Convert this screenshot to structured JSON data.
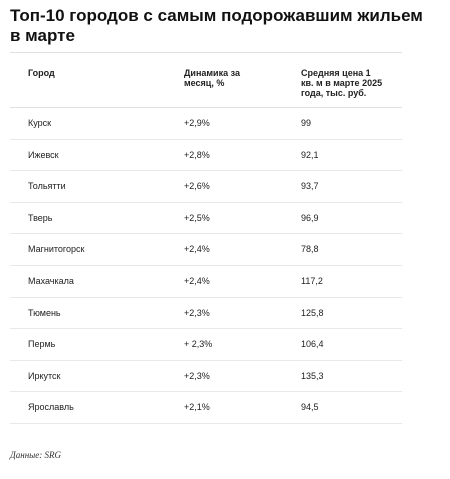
{
  "title": "Топ-10 городов с самым подорожавшим жильем в марте",
  "table": {
    "headers": {
      "city": "Город",
      "dynamics": "Динамика за месяц, %",
      "price": "Средняя цена 1 кв. м в марте 2025 года, тыс. руб."
    },
    "rows": [
      {
        "city": "Курск",
        "dynamics": "+2,9%",
        "price": "99"
      },
      {
        "city": "Ижевск",
        "dynamics": "+2,8%",
        "price": "92,1"
      },
      {
        "city": "Тольятти",
        "dynamics": "+2,6%",
        "price": "93,7"
      },
      {
        "city": "Тверь",
        "dynamics": "+2,5%",
        "price": "96,9"
      },
      {
        "city": "Магнитогорск",
        "dynamics": "+2,4%",
        "price": "78,8"
      },
      {
        "city": "Махачкала",
        "dynamics": "+2,4%",
        "price": "117,2"
      },
      {
        "city": "Тюмень",
        "dynamics": "+2,3%",
        "price": "125,8"
      },
      {
        "city": "Пермь",
        "dynamics": "+ 2,3%",
        "price": "106,4"
      },
      {
        "city": "Иркутск",
        "dynamics": "+2,3%",
        "price": "135,3"
      },
      {
        "city": "Ярославль",
        "dynamics": "+2,1%",
        "price": "94,5"
      }
    ]
  },
  "source": "Данные: SRG"
}
